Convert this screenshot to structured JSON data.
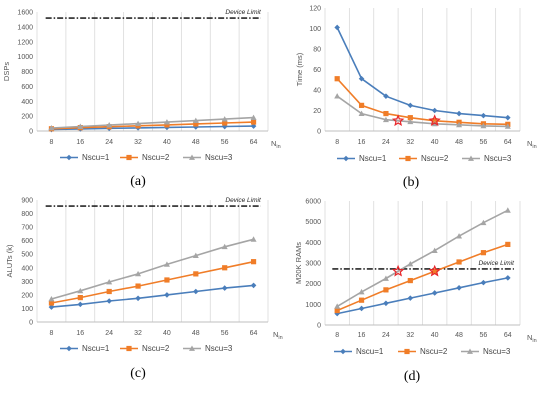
{
  "chart_data": [
    {
      "type": "line",
      "caption": "(a)",
      "categories": [
        "8",
        "16",
        "24",
        "32",
        "40",
        "48",
        "56",
        "64"
      ],
      "xlabel": "N",
      "xlabel_sub": "in",
      "ylabel": "DSPs",
      "ylim": [
        0,
        1600
      ],
      "yticks": [
        0,
        200,
        400,
        600,
        800,
        1000,
        1200,
        1400,
        1600
      ],
      "grid": "vertical",
      "device_limit": {
        "label": "Device Limit",
        "value": 1518
      },
      "series": [
        {
          "name": "Nscu=1",
          "values": [
            20,
            28,
            36,
            42,
            48,
            54,
            60,
            66
          ]
        },
        {
          "name": "Nscu=2",
          "values": [
            30,
            45,
            58,
            70,
            82,
            95,
            108,
            120
          ]
        },
        {
          "name": "Nscu=3",
          "values": [
            40,
            60,
            80,
            100,
            120,
            140,
            160,
            180
          ]
        }
      ],
      "markers": []
    },
    {
      "type": "line",
      "caption": "(b)",
      "categories": [
        "8",
        "16",
        "24",
        "32",
        "40",
        "48",
        "56",
        "64"
      ],
      "xlabel": "N",
      "xlabel_sub": "in",
      "ylabel": "Time (ms)",
      "ylim": [
        0,
        120
      ],
      "yticks": [
        0,
        20,
        40,
        60,
        80,
        100,
        120
      ],
      "grid": "vertical",
      "device_limit": null,
      "series": [
        {
          "name": "Nscu=1",
          "values": [
            101,
            51,
            34,
            25,
            20,
            17,
            15,
            13
          ]
        },
        {
          "name": "Nscu=2",
          "values": [
            51,
            25,
            17,
            13,
            10,
            8.5,
            7,
            6.5
          ]
        },
        {
          "name": "Nscu=3",
          "values": [
            34,
            17,
            11,
            9,
            7,
            6,
            5,
            4.5
          ]
        }
      ],
      "markers": [
        {
          "x": 28,
          "y": 10
        },
        {
          "x": 40,
          "y": 10
        }
      ]
    },
    {
      "type": "line",
      "caption": "(c)",
      "categories": [
        "8",
        "16",
        "24",
        "32",
        "40",
        "48",
        "56",
        "64"
      ],
      "xlabel": "N",
      "xlabel_sub": "in",
      "ylabel": "ALUTs (k)",
      "ylim": [
        0,
        900
      ],
      "yticks": [
        0,
        100,
        200,
        300,
        400,
        500,
        600,
        700,
        800,
        900
      ],
      "grid": "vertical",
      "device_limit": {
        "label": "Device Limit",
        "value": 855
      },
      "series": [
        {
          "name": "Nscu=1",
          "values": [
            110,
            130,
            155,
            175,
            200,
            225,
            250,
            270
          ]
        },
        {
          "name": "Nscu=2",
          "values": [
            140,
            180,
            225,
            265,
            310,
            355,
            400,
            445
          ]
        },
        {
          "name": "Nscu=3",
          "values": [
            170,
            230,
            295,
            355,
            425,
            490,
            555,
            610
          ]
        }
      ],
      "markers": []
    },
    {
      "type": "line",
      "caption": "(d)",
      "categories": [
        "8",
        "16",
        "24",
        "32",
        "40",
        "48",
        "56",
        "64"
      ],
      "xlabel": "N",
      "xlabel_sub": "in",
      "ylabel": "M20K RAMs",
      "ylim": [
        0,
        6000
      ],
      "yticks": [
        0,
        1000,
        2000,
        3000,
        4000,
        5000,
        6000
      ],
      "grid": "vertical",
      "device_limit": {
        "label": "Device Limit",
        "value": 2713
      },
      "series": [
        {
          "name": "Nscu=1",
          "values": [
            550,
            800,
            1050,
            1300,
            1550,
            1800,
            2050,
            2280
          ]
        },
        {
          "name": "Nscu=2",
          "values": [
            700,
            1200,
            1700,
            2150,
            2600,
            3050,
            3500,
            3900
          ]
        },
        {
          "name": "Nscu=3",
          "values": [
            900,
            1600,
            2250,
            2950,
            3600,
            4300,
            4950,
            5550
          ]
        }
      ],
      "markers": [
        {
          "x": 28,
          "y": 2600
        },
        {
          "x": 40,
          "y": 2600
        }
      ]
    }
  ],
  "colors": {
    "Nscu=1": "#4a7ebb",
    "Nscu=2": "#f07d28",
    "Nscu=3": "#a5a5a5",
    "marker": "#e8262a",
    "limit": "#000000"
  }
}
